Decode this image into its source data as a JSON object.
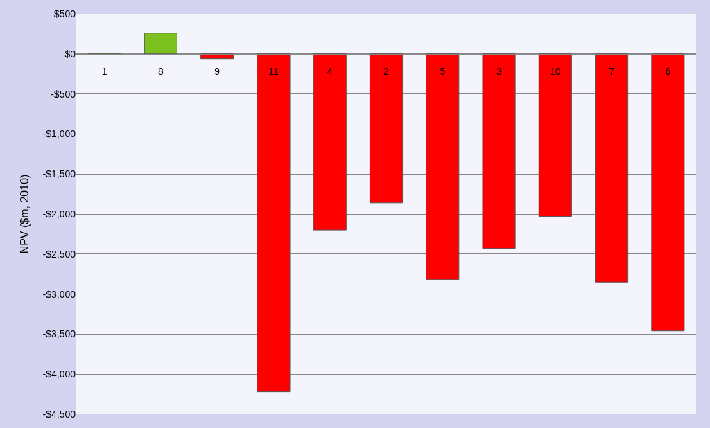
{
  "chart_data": {
    "type": "bar",
    "ylabel": "NPV ($m, 2010)",
    "categories": [
      "1",
      "8",
      "9",
      "11",
      "4",
      "2",
      "5",
      "3",
      "10",
      "7",
      "6"
    ],
    "values": [
      10,
      260,
      -60,
      -4220,
      -2200,
      -1860,
      -2820,
      -2430,
      -2030,
      -2850,
      -3460
    ],
    "colors": [
      "#7cc11f",
      "#7cc11f",
      "#ff0000",
      "#ff0000",
      "#ff0000",
      "#ff0000",
      "#ff0000",
      "#ff0000",
      "#ff0000",
      "#ff0000",
      "#ff0000"
    ],
    "ylim": [
      -4500,
      500
    ],
    "yticks": [
      {
        "value": 500,
        "label": "$500"
      },
      {
        "value": 0,
        "label": "$0"
      },
      {
        "value": -500,
        "label": "-$500"
      },
      {
        "value": -1000,
        "label": "-$1,000"
      },
      {
        "value": -1500,
        "label": "-$1,500"
      },
      {
        "value": -2000,
        "label": "-$2,000"
      },
      {
        "value": -2500,
        "label": "-$2,500"
      },
      {
        "value": -3000,
        "label": "-$3,000"
      },
      {
        "value": -3500,
        "label": "-$3,500"
      },
      {
        "value": -4000,
        "label": "-$4,000"
      },
      {
        "value": -4500,
        "label": "-$4,500"
      }
    ],
    "grid": "y",
    "legend": false
  }
}
